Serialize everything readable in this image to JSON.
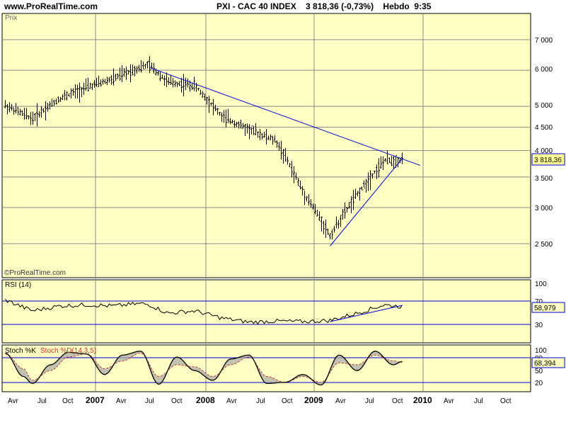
{
  "header": {
    "site": "www.ProRealTime.com",
    "title": "PXI - CAC 40 INDEX    3 818,36 (-0,73%)    Hebdo  9:35"
  },
  "colors": {
    "panel_bg": "#ffffc4",
    "trend_line": "#0000e0",
    "price_tag_bg": "#ffff99",
    "price_tag_border": "#0000e0",
    "stoch_k": "#000000",
    "stoch_d": "#cc3333",
    "stoch_fill": "#a8a8a8",
    "grid": "#000000"
  },
  "price_panel": {
    "label": "Prix",
    "watermark": "©ProRealTime.com",
    "last_value_label": "3 818,36",
    "ticks": [
      "7 000",
      "6 000",
      "5 000",
      "4 500",
      "4 000",
      "3 500",
      "3 000",
      "2 500"
    ]
  },
  "rsi_panel": {
    "label": "RSI (14)",
    "axis_labels": [
      "100",
      "70",
      "30"
    ],
    "last_value_label": "58,979",
    "levels": [
      70,
      30
    ]
  },
  "stoch_panel": {
    "label_k": "Stoch %K",
    "label_d": "Stoch %D(14,3,5)",
    "axis_labels": [
      "100",
      "80",
      "50",
      "20"
    ],
    "last_value_label": "68,394",
    "levels": [
      80,
      20
    ]
  },
  "x_axis": {
    "labels": [
      "Avr",
      "Jul",
      "Oct",
      "2007",
      "Avr",
      "Jul",
      "Oct",
      "2008",
      "Avr",
      "Jul",
      "Oct",
      "2009",
      "Avr",
      "Jul",
      "Oct",
      "2010",
      "Avr",
      "Jul",
      "Oct"
    ]
  },
  "chart_data": [
    {
      "type": "line",
      "kind": "ohlc_weekly",
      "title": "PXI - CAC 40 INDEX",
      "ylabel": "Prix",
      "y_scale": "log",
      "ylim": [
        2150,
        7600
      ],
      "yticks": [
        7000,
        6000,
        5000,
        4500,
        4000,
        3500,
        3000,
        2500
      ],
      "x": [
        "2006-03",
        "2006-06",
        "2006-09",
        "2006-12",
        "2007-03",
        "2007-06",
        "2007-07",
        "2007-09",
        "2007-12",
        "2008-03",
        "2008-06",
        "2008-09",
        "2008-12",
        "2009-03",
        "2009-06",
        "2009-09",
        "2009-11"
      ],
      "series": [
        {
          "name": "CAC 40 close",
          "values": [
            5020,
            4700,
            5200,
            5500,
            5750,
            6100,
            6150,
            5650,
            5550,
            4750,
            4450,
            4200,
            3250,
            2600,
            3200,
            3800,
            3818.36
          ]
        }
      ],
      "trendlines": [
        {
          "from": [
            "2007-07",
            6080
          ],
          "to": [
            "2010-01",
            3710
          ]
        },
        {
          "from": [
            "2009-03",
            2470
          ],
          "to": [
            "2009-11",
            3840
          ]
        }
      ],
      "last_value": 3818.36
    },
    {
      "type": "line",
      "title": "RSI (14)",
      "ylim": [
        0,
        100
      ],
      "levels": [
        70,
        30
      ],
      "x": [
        "2006-03",
        "2006-06",
        "2006-09",
        "2006-12",
        "2007-03",
        "2007-06",
        "2007-07",
        "2007-09",
        "2007-12",
        "2008-03",
        "2008-06",
        "2008-09",
        "2008-12",
        "2009-03",
        "2009-06",
        "2009-09",
        "2009-11"
      ],
      "series": [
        {
          "name": "RSI",
          "values": [
            70,
            52,
            60,
            62,
            60,
            64,
            62,
            48,
            52,
            40,
            33,
            35,
            34,
            36,
            48,
            62,
            58.979
          ]
        }
      ],
      "trendlines": [
        {
          "from": [
            "2009-03",
            34
          ],
          "to": [
            "2009-11",
            61
          ]
        }
      ],
      "last_value": 58.979
    },
    {
      "type": "line",
      "title": "Stoch %K / Stoch %D(14,3,5)",
      "ylim": [
        0,
        100
      ],
      "levels": [
        80,
        20
      ],
      "x": [
        "2006-03",
        "2006-05",
        "2006-06",
        "2006-08",
        "2006-10",
        "2006-12",
        "2007-02",
        "2007-04",
        "2007-06",
        "2007-08",
        "2007-10",
        "2007-12",
        "2008-02",
        "2008-04",
        "2008-06",
        "2008-08",
        "2008-10",
        "2008-12",
        "2009-02",
        "2009-04",
        "2009-06",
        "2009-08",
        "2009-10",
        "2009-11"
      ],
      "series": [
        {
          "name": "Stoch %K",
          "values": [
            90,
            30,
            12,
            60,
            92,
            88,
            35,
            85,
            95,
            10,
            80,
            45,
            20,
            75,
            85,
            12,
            15,
            35,
            8,
            85,
            45,
            95,
            60,
            68.394
          ]
        },
        {
          "name": "Stoch %D(14,3,5)",
          "values": [
            88,
            50,
            20,
            45,
            80,
            88,
            50,
            70,
            90,
            30,
            60,
            55,
            30,
            60,
            80,
            30,
            15,
            30,
            15,
            65,
            60,
            85,
            70,
            66
          ]
        }
      ],
      "last_value": 68.394
    }
  ]
}
